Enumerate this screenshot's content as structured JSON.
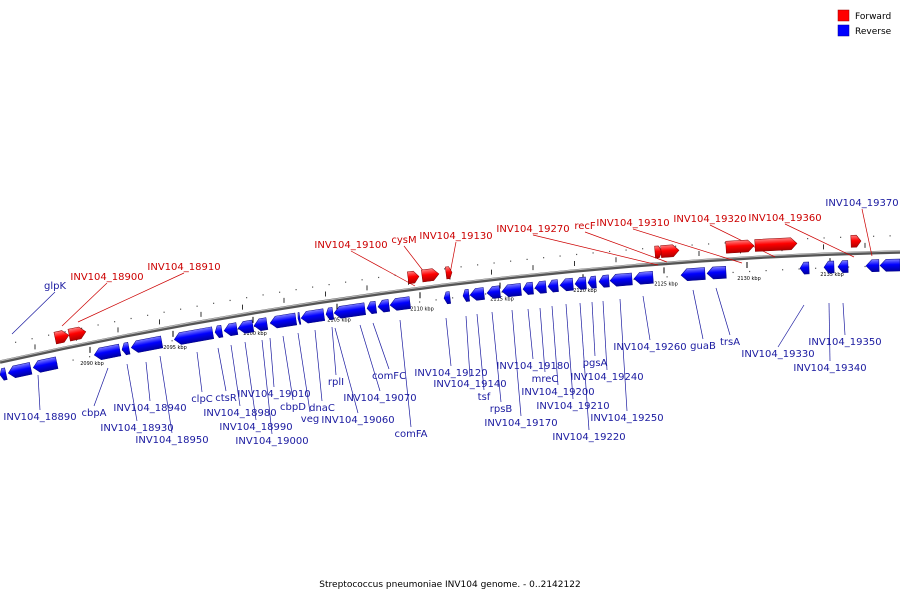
{
  "caption": "Streptococcus pneumoniae INV104 genome. - 0..2142122",
  "legend": {
    "forward_label": "Forward",
    "reverse_label": "Reverse",
    "forward_color": "#ff0000",
    "reverse_color": "#0000ff"
  },
  "colors": {
    "forward_label": "#cc0000",
    "reverse_label": "#1a1aa0",
    "backbone": "#888888"
  },
  "ticks": [
    "2090 kbp",
    "2095 kbp",
    "2100 kbp",
    "2105 kbp",
    "2110 kbp",
    "2115 kbp",
    "2120 kbp",
    "2125 kbp",
    "2130 kbp",
    "2135 kbp"
  ],
  "forward_labels": [
    {
      "name": "glpK",
      "target": 0
    },
    {
      "name": "INV104_18900",
      "target": 1
    },
    {
      "name": "INV104_18910",
      "target": 2
    },
    {
      "name": "INV104_19100",
      "target": 3
    },
    {
      "name": "cysM",
      "target": 4
    },
    {
      "name": "INV104_19130",
      "target": 5
    },
    {
      "name": "INV104_19270",
      "target": 6
    },
    {
      "name": "recF",
      "target": 7
    },
    {
      "name": "INV104_19310",
      "target": 8
    },
    {
      "name": "INV104_19320",
      "target": 9
    },
    {
      "name": "INV104_19360",
      "target": 10
    },
    {
      "name": "INV104_19370",
      "target": 11
    }
  ],
  "reverse_labels": [
    "INV104_18890",
    "cbpA",
    "INV104_18930",
    "INV104_18940",
    "INV104_18950",
    "clpC",
    "ctsR",
    "INV104_18980",
    "INV104_18990",
    "INV104_19000",
    "INV104_19010",
    "cbpD",
    "veg",
    "dnaC",
    "INV104_19060",
    "rplI",
    "INV104_19070",
    "comFC",
    "comFA",
    "INV104_19120",
    "INV104_19140",
    "tsf",
    "rpsB",
    "INV104_19170",
    "INV104_19180",
    "mreC",
    "INV104_19200",
    "INV104_19210",
    "INV104_19220",
    "pgsA",
    "INV104_19240",
    "INV104_19250",
    "INV104_19260",
    "guaB",
    "trsA",
    "INV104_19330",
    "INV104_19340",
    "INV104_19350"
  ]
}
